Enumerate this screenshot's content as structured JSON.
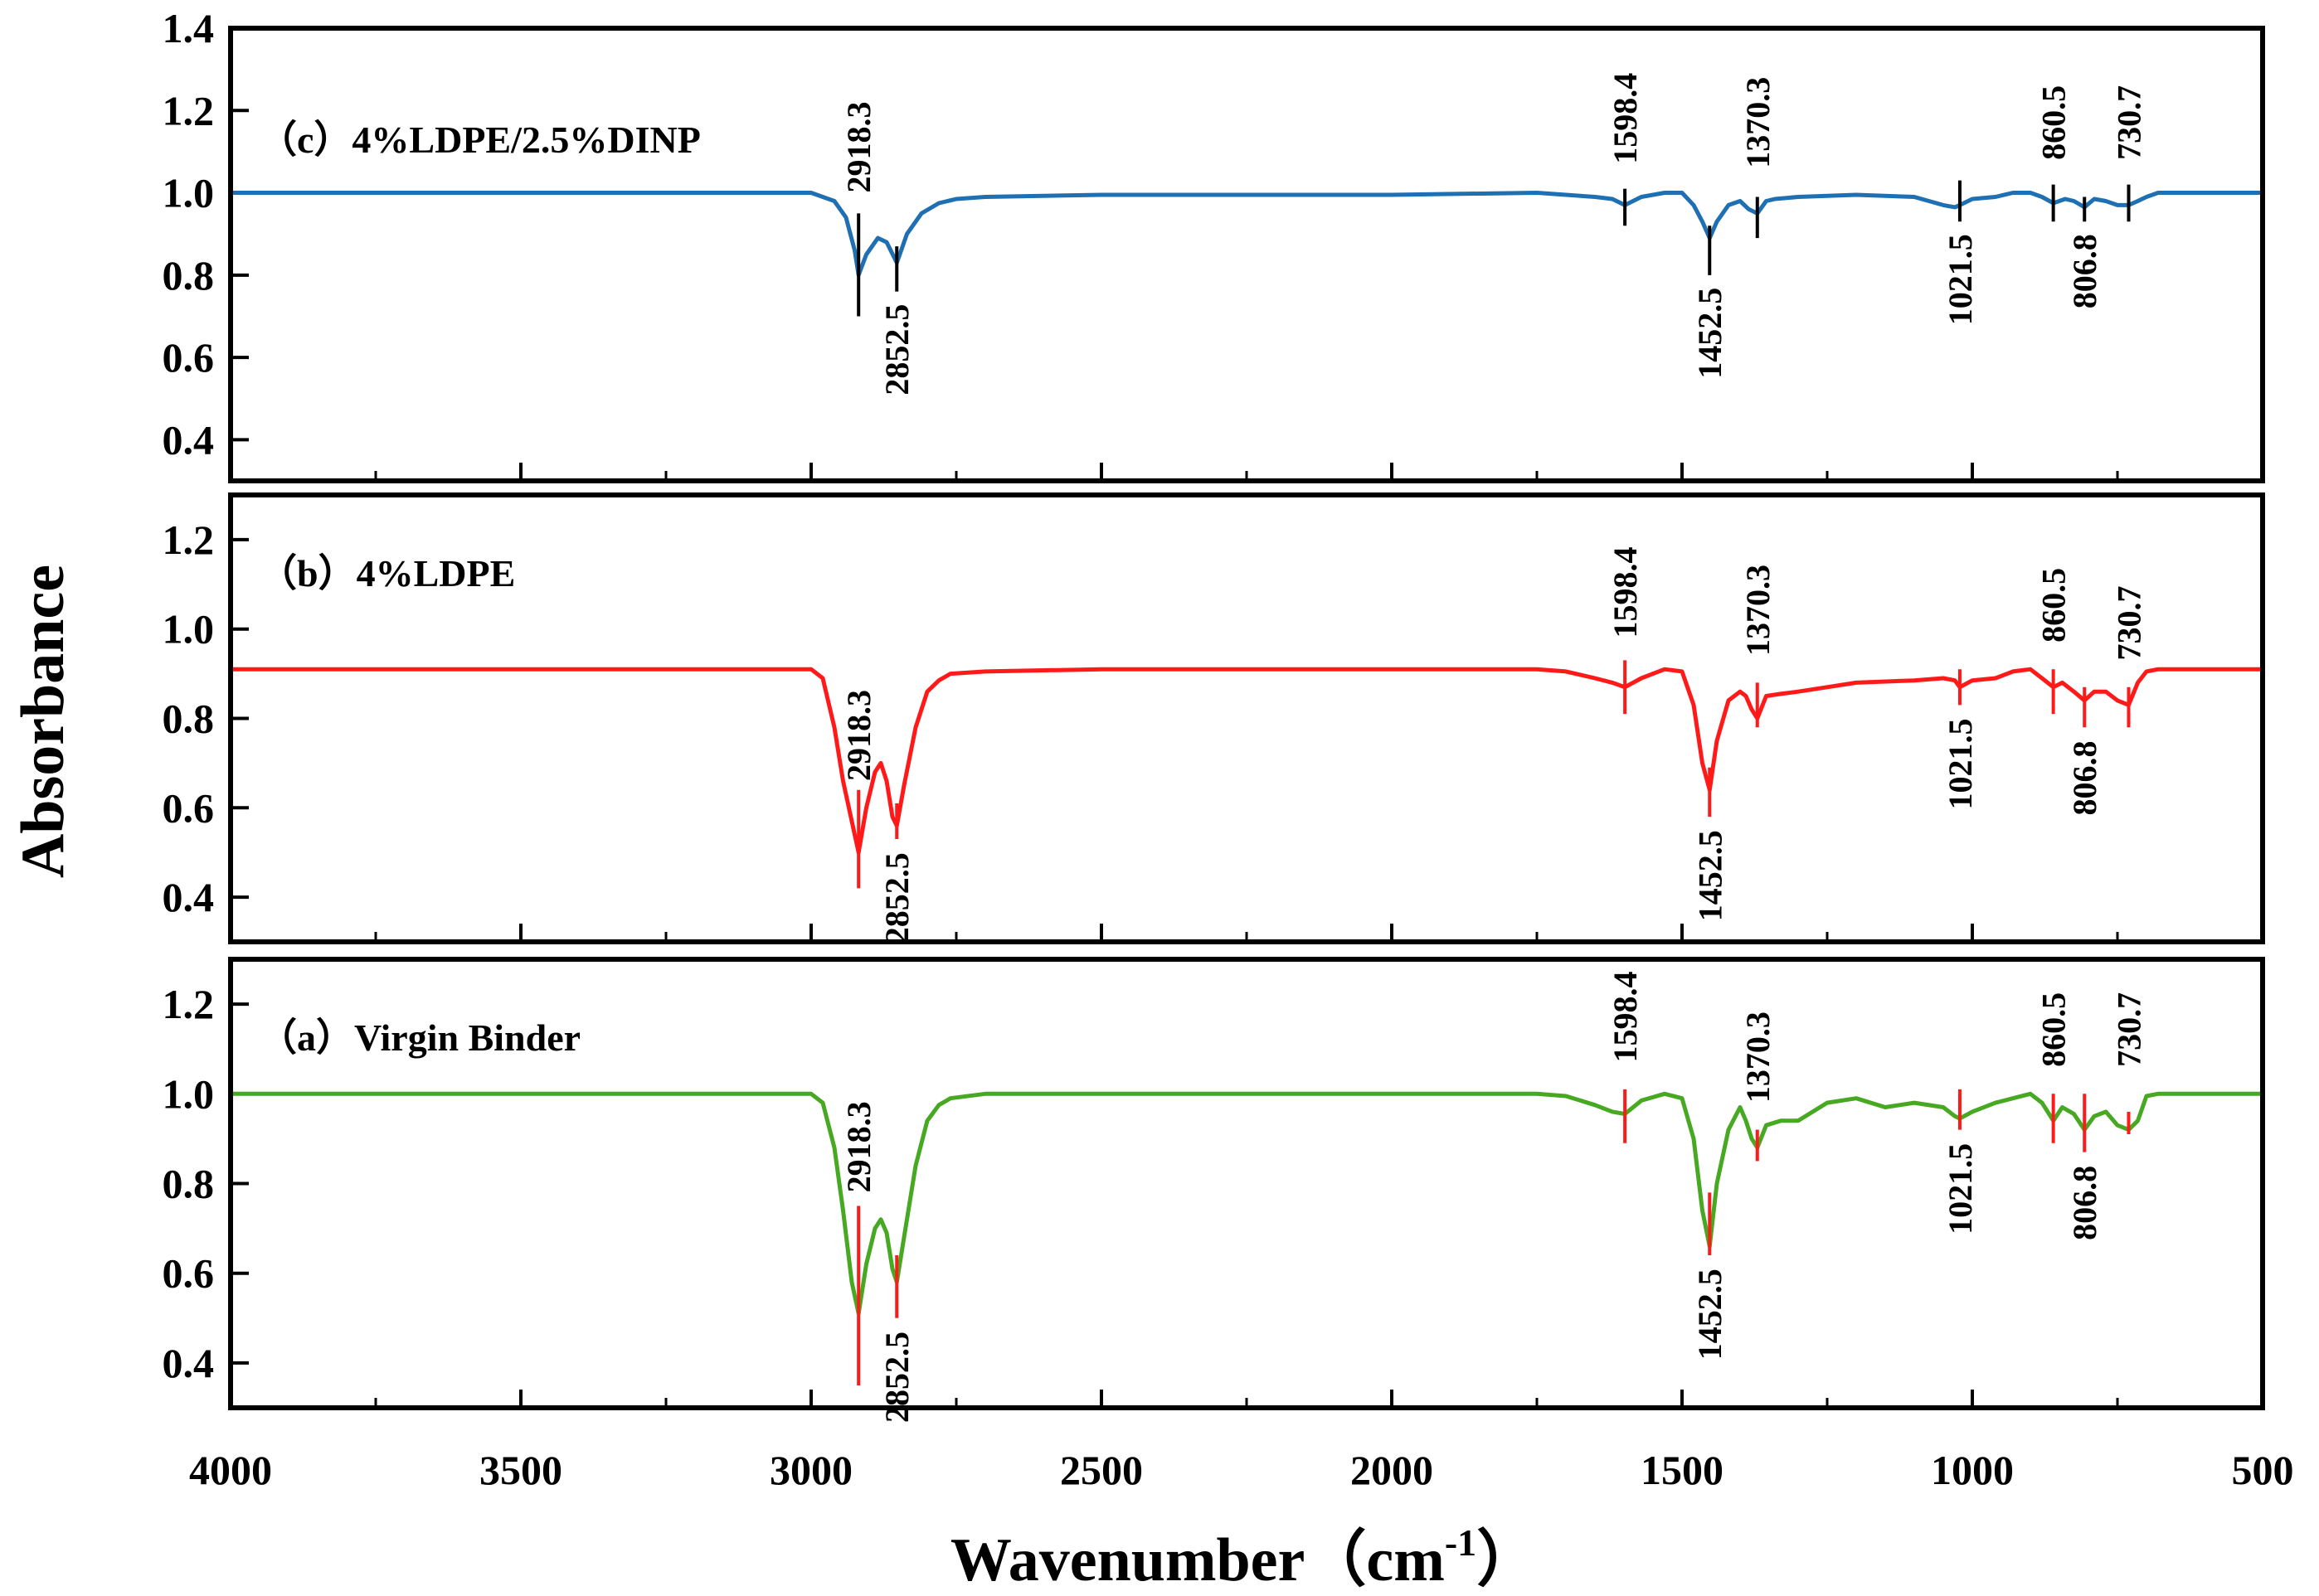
{
  "chart_data": {
    "type": "line",
    "xlabel_main": "Wavenumber（cm",
    "xlabel_sup": "-1",
    "xlabel_end": "）",
    "ylabel": "Absorbance",
    "xlim": [
      4000,
      500
    ],
    "x_ticks": [
      4000,
      3500,
      3000,
      2500,
      2000,
      1500,
      1000,
      500
    ],
    "grid": false,
    "panels": [
      {
        "label": "（c）4%LDPE/2.5%DINP",
        "color": "#1f6fb3",
        "marker_color": "#000000",
        "ylim": [
          0.3,
          1.4
        ],
        "y_ticks": [
          "0.4",
          "0.6",
          "0.8",
          "1.0",
          "1.2",
          "1.4"
        ],
        "x": [
          4000,
          3000,
          2960,
          2940,
          2925,
          2918.3,
          2905,
          2885,
          2870,
          2852.5,
          2835,
          2810,
          2780,
          2750,
          2700,
          2500,
          2000,
          1750,
          1700,
          1650,
          1620,
          1598.4,
          1570,
          1530,
          1500,
          1480,
          1465,
          1452.5,
          1440,
          1420,
          1400,
          1385,
          1370.3,
          1355,
          1340,
          1300,
          1200,
          1100,
          1050,
          1030,
          1021.5,
          1000,
          960,
          930,
          900,
          880,
          860.5,
          840,
          825,
          806.8,
          790,
          770,
          750,
          730.7,
          715,
          700,
          680,
          600,
          500
        ],
        "y": [
          1.0,
          1.0,
          0.98,
          0.94,
          0.86,
          0.8,
          0.85,
          0.89,
          0.88,
          0.83,
          0.9,
          0.95,
          0.975,
          0.985,
          0.99,
          0.995,
          0.995,
          1.0,
          0.995,
          0.99,
          0.985,
          0.97,
          0.99,
          1.0,
          1.0,
          0.97,
          0.93,
          0.89,
          0.93,
          0.97,
          0.98,
          0.96,
          0.95,
          0.98,
          0.985,
          0.99,
          0.995,
          0.99,
          0.97,
          0.965,
          0.97,
          0.985,
          0.99,
          1.0,
          1.0,
          0.99,
          0.975,
          0.985,
          0.98,
          0.965,
          0.985,
          0.98,
          0.97,
          0.97,
          0.98,
          0.99,
          1.0,
          1.0,
          1.0
        ],
        "markers": [
          {
            "label": "2918.3",
            "x": 2918.3,
            "y1": 0.95,
            "y2": 0.7,
            "label_y": 1.0,
            "side": "above"
          },
          {
            "label": "2852.5",
            "x": 2852.5,
            "y1": 0.87,
            "y2": 0.76,
            "label_y": 0.73,
            "side": "below"
          },
          {
            "label": "1598.4",
            "x": 1598.4,
            "y1": 1.01,
            "y2": 0.92,
            "label_y": 1.07,
            "side": "above"
          },
          {
            "label": "1452.5",
            "x": 1452.5,
            "y1": 0.92,
            "y2": 0.8,
            "label_y": 0.77,
            "side": "below"
          },
          {
            "label": "1370.3",
            "x": 1370.3,
            "y1": 0.99,
            "y2": 0.89,
            "label_y": 1.06,
            "side": "above"
          },
          {
            "label": "1021.5",
            "x": 1021.5,
            "y1": 1.03,
            "y2": 0.93,
            "label_y": 0.9,
            "side": "below"
          },
          {
            "label": "860.5",
            "x": 860.5,
            "y1": 1.02,
            "y2": 0.93,
            "label_y": 1.08,
            "side": "above"
          },
          {
            "label": "806.8",
            "x": 806.8,
            "y1": 0.99,
            "y2": 0.93,
            "label_y": 0.9,
            "side": "below"
          },
          {
            "label": "730.7",
            "x": 730.7,
            "y1": 1.02,
            "y2": 0.93,
            "label_y": 1.08,
            "side": "above"
          }
        ]
      },
      {
        "label": "（b）4%LDPE",
        "color": "#ff1a1a",
        "marker_color": "#ff1a1a",
        "ylim": [
          0.3,
          1.3
        ],
        "y_ticks": [
          "0.4",
          "0.6",
          "0.8",
          "1.0",
          "1.2"
        ],
        "x": [
          4000,
          3000,
          2980,
          2960,
          2945,
          2930,
          2918.3,
          2905,
          2890,
          2880,
          2870,
          2860,
          2852.5,
          2840,
          2820,
          2800,
          2780,
          2760,
          2700,
          2500,
          2000,
          1750,
          1700,
          1650,
          1620,
          1598.4,
          1570,
          1530,
          1500,
          1480,
          1465,
          1452.5,
          1440,
          1420,
          1400,
          1390,
          1380,
          1370.3,
          1355,
          1330,
          1300,
          1250,
          1200,
          1100,
          1050,
          1030,
          1021.5,
          1000,
          960,
          930,
          900,
          880,
          860.5,
          845,
          825,
          806.8,
          790,
          770,
          750,
          730.7,
          715,
          700,
          680,
          600,
          500
        ],
        "y": [
          0.91,
          0.91,
          0.89,
          0.78,
          0.66,
          0.57,
          0.5,
          0.6,
          0.68,
          0.7,
          0.66,
          0.58,
          0.56,
          0.65,
          0.78,
          0.86,
          0.885,
          0.9,
          0.905,
          0.91,
          0.91,
          0.91,
          0.905,
          0.89,
          0.88,
          0.87,
          0.89,
          0.91,
          0.905,
          0.83,
          0.7,
          0.64,
          0.75,
          0.84,
          0.86,
          0.85,
          0.82,
          0.8,
          0.85,
          0.855,
          0.86,
          0.87,
          0.88,
          0.885,
          0.89,
          0.885,
          0.87,
          0.885,
          0.89,
          0.905,
          0.91,
          0.89,
          0.87,
          0.88,
          0.86,
          0.84,
          0.86,
          0.86,
          0.84,
          0.83,
          0.88,
          0.905,
          0.91,
          0.91,
          0.91
        ],
        "markers": [
          {
            "label": "2918.3",
            "x": 2918.3,
            "y1": 0.64,
            "y2": 0.42,
            "label_y": 0.66,
            "side": "above"
          },
          {
            "label": "2852.5",
            "x": 2852.5,
            "y1": 0.61,
            "y2": 0.53,
            "label_y": 0.5,
            "side": "below"
          },
          {
            "label": "1598.4",
            "x": 1598.4,
            "y1": 0.93,
            "y2": 0.81,
            "label_y": 0.98,
            "side": "above"
          },
          {
            "label": "1452.5",
            "x": 1452.5,
            "y1": 0.69,
            "y2": 0.58,
            "label_y": 0.55,
            "side": "below"
          },
          {
            "label": "1370.3",
            "x": 1370.3,
            "y1": 0.88,
            "y2": 0.78,
            "label_y": 0.94,
            "side": "above"
          },
          {
            "label": "1021.5",
            "x": 1021.5,
            "y1": 0.91,
            "y2": 0.83,
            "label_y": 0.8,
            "side": "below"
          },
          {
            "label": "860.5",
            "x": 860.5,
            "y1": 0.91,
            "y2": 0.81,
            "label_y": 0.97,
            "side": "above"
          },
          {
            "label": "806.8",
            "x": 806.8,
            "y1": 0.87,
            "y2": 0.78,
            "label_y": 0.75,
            "side": "below"
          },
          {
            "label": "730.7",
            "x": 730.7,
            "y1": 0.87,
            "y2": 0.78,
            "label_y": 0.93,
            "side": "above"
          }
        ]
      },
      {
        "label": "（a）Virgin Binder",
        "color": "#47a822",
        "marker_color": "#ff1a1a",
        "ylim": [
          0.3,
          1.3
        ],
        "y_ticks": [
          "0.4",
          "0.6",
          "0.8",
          "1.0",
          "1.2"
        ],
        "x": [
          4000,
          3000,
          2980,
          2960,
          2945,
          2930,
          2918.3,
          2905,
          2890,
          2880,
          2870,
          2860,
          2852.5,
          2840,
          2820,
          2800,
          2780,
          2760,
          2700,
          2500,
          2000,
          1750,
          1700,
          1650,
          1620,
          1598.4,
          1570,
          1530,
          1500,
          1480,
          1465,
          1452.5,
          1440,
          1420,
          1400,
          1390,
          1380,
          1370.3,
          1355,
          1330,
          1300,
          1250,
          1200,
          1150,
          1100,
          1050,
          1030,
          1021.5,
          1000,
          960,
          930,
          900,
          880,
          860.5,
          845,
          825,
          806.8,
          790,
          770,
          750,
          730.7,
          715,
          700,
          680,
          600,
          500
        ],
        "y": [
          1.0,
          1.0,
          0.98,
          0.88,
          0.74,
          0.58,
          0.51,
          0.62,
          0.7,
          0.72,
          0.69,
          0.61,
          0.58,
          0.68,
          0.84,
          0.94,
          0.975,
          0.99,
          1.0,
          1.0,
          1.0,
          1.0,
          0.995,
          0.975,
          0.96,
          0.955,
          0.985,
          1.0,
          0.99,
          0.9,
          0.74,
          0.66,
          0.8,
          0.92,
          0.97,
          0.94,
          0.9,
          0.88,
          0.93,
          0.94,
          0.94,
          0.98,
          0.99,
          0.97,
          0.98,
          0.97,
          0.95,
          0.945,
          0.96,
          0.98,
          0.99,
          1.0,
          0.98,
          0.94,
          0.97,
          0.955,
          0.92,
          0.95,
          0.96,
          0.93,
          0.92,
          0.94,
          0.995,
          1.0,
          1.0,
          1.0
        ],
        "markers": [
          {
            "label": "2918.3",
            "x": 2918.3,
            "y1": 0.75,
            "y2": 0.35,
            "label_y": 0.78,
            "side": "above"
          },
          {
            "label": "2852.5",
            "x": 2852.5,
            "y1": 0.64,
            "y2": 0.5,
            "label_y": 0.47,
            "side": "below"
          },
          {
            "label": "1598.4",
            "x": 1598.4,
            "y1": 1.01,
            "y2": 0.89,
            "label_y": 1.07,
            "side": "above"
          },
          {
            "label": "1452.5",
            "x": 1452.5,
            "y1": 0.78,
            "y2": 0.64,
            "label_y": 0.61,
            "side": "below"
          },
          {
            "label": "1370.3",
            "x": 1370.3,
            "y1": 0.92,
            "y2": 0.85,
            "label_y": 0.98,
            "side": "above"
          },
          {
            "label": "1021.5",
            "x": 1021.5,
            "y1": 1.01,
            "y2": 0.92,
            "label_y": 0.89,
            "side": "below"
          },
          {
            "label": "860.5",
            "x": 860.5,
            "y1": 1.0,
            "y2": 0.89,
            "label_y": 1.06,
            "side": "above"
          },
          {
            "label": "806.8",
            "x": 806.8,
            "y1": 1.0,
            "y2": 0.87,
            "label_y": 0.84,
            "side": "below"
          },
          {
            "label": "730.7",
            "x": 730.7,
            "y1": 0.96,
            "y2": 0.91,
            "label_y": 1.06,
            "side": "above"
          }
        ]
      }
    ]
  }
}
